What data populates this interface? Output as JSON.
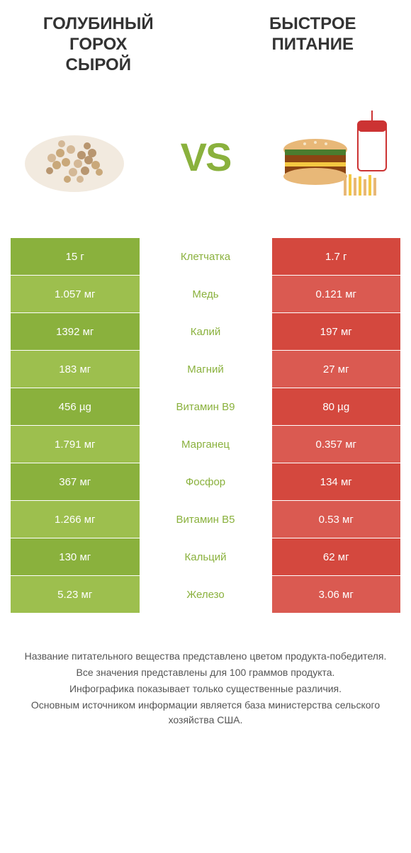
{
  "header": {
    "left_title": "ГОЛУБИНЫЙ\nГОРОХ\nСЫРОЙ",
    "right_title": "БЫСТРОЕ\nПИТАНИЕ"
  },
  "vs_label": "VS",
  "colors": {
    "green_primary": "#8ab13d",
    "green_light": "#9dbf4e",
    "red_primary": "#d4483e",
    "red_light": "#da5a51",
    "text_green": "#8ab13d",
    "text_dark": "#333333",
    "text_gray": "#555555"
  },
  "table": {
    "rows": [
      {
        "left": "15 г",
        "center": "Клетчатка",
        "right": "1.7 г",
        "left_bg": "#8ab13d",
        "right_bg": "#d4483e"
      },
      {
        "left": "1.057 мг",
        "center": "Медь",
        "right": "0.121 мг",
        "left_bg": "#9dbf4e",
        "right_bg": "#da5a51"
      },
      {
        "left": "1392 мг",
        "center": "Калий",
        "right": "197 мг",
        "left_bg": "#8ab13d",
        "right_bg": "#d4483e"
      },
      {
        "left": "183 мг",
        "center": "Магний",
        "right": "27 мг",
        "left_bg": "#9dbf4e",
        "right_bg": "#da5a51"
      },
      {
        "left": "456 µg",
        "center": "Витамин B9",
        "right": "80 µg",
        "left_bg": "#8ab13d",
        "right_bg": "#d4483e"
      },
      {
        "left": "1.791 мг",
        "center": "Марганец",
        "right": "0.357 мг",
        "left_bg": "#9dbf4e",
        "right_bg": "#da5a51"
      },
      {
        "left": "367 мг",
        "center": "Фосфор",
        "right": "134 мг",
        "left_bg": "#8ab13d",
        "right_bg": "#d4483e"
      },
      {
        "left": "1.266 мг",
        "center": "Витамин B5",
        "right": "0.53 мг",
        "left_bg": "#9dbf4e",
        "right_bg": "#da5a51"
      },
      {
        "left": "130 мг",
        "center": "Кальций",
        "right": "62 мг",
        "left_bg": "#8ab13d",
        "right_bg": "#d4483e"
      },
      {
        "left": "5.23 мг",
        "center": "Железо",
        "right": "3.06 мг",
        "left_bg": "#9dbf4e",
        "right_bg": "#da5a51"
      }
    ]
  },
  "footer": {
    "line1": "Название питательного вещества представлено цветом продукта-победителя.",
    "line2": "Все значения представлены для 100 граммов продукта.",
    "line3": "Инфографика показывает только существенные различия.",
    "line4": "Основным источником информации является база министерства сельского хозяйства США."
  }
}
